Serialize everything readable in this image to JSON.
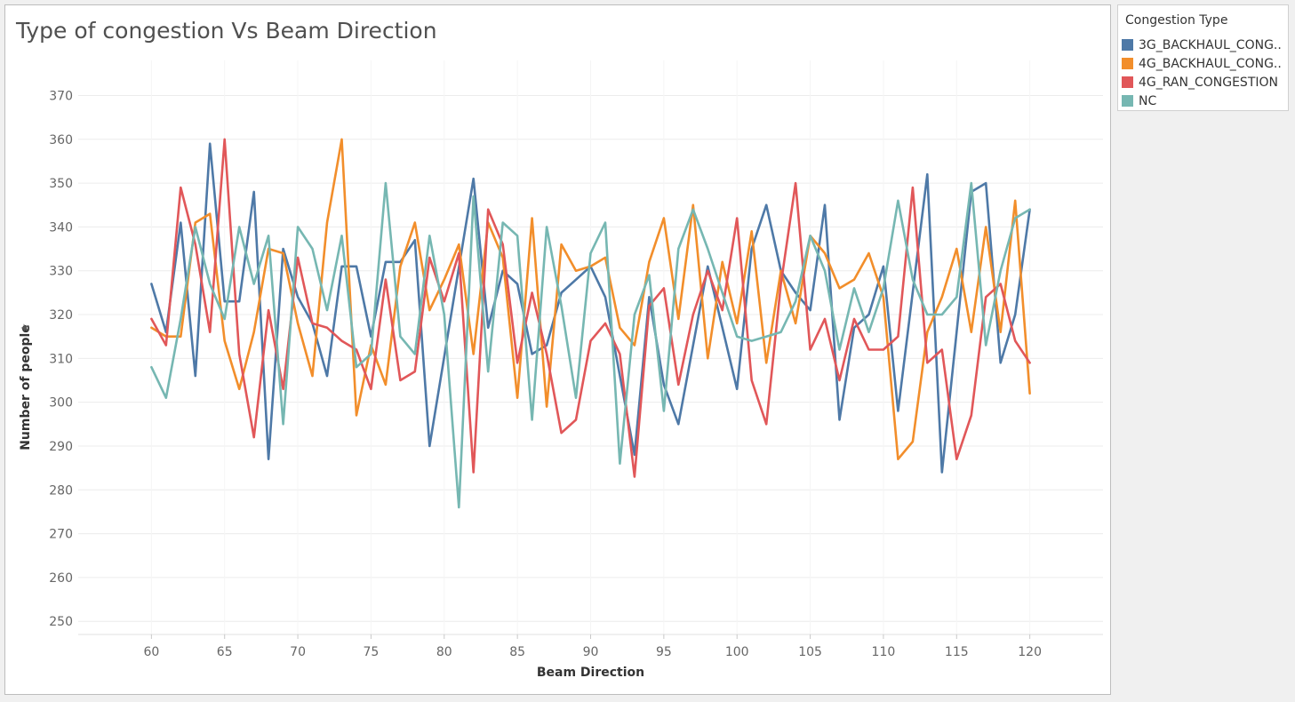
{
  "chart_data": {
    "type": "line",
    "title": "Type of congestion Vs Beam Direction",
    "xlabel": "Beam Direction",
    "ylabel": "Number of people",
    "xlim": [
      55,
      125
    ],
    "ylim": [
      247,
      378
    ],
    "x_ticks": [
      60,
      65,
      70,
      75,
      80,
      85,
      90,
      95,
      100,
      105,
      110,
      115,
      120
    ],
    "y_ticks": [
      250,
      260,
      270,
      280,
      290,
      300,
      310,
      320,
      330,
      340,
      350,
      360,
      370
    ],
    "grid": "horizontal",
    "legend_position": "top-right",
    "legend_title": "Congestion Type",
    "series": [
      {
        "name": "3G_BACKHAUL_CONG..",
        "color": "#4e79a7",
        "points": [
          [
            60,
            327
          ],
          [
            61,
            316
          ],
          [
            62,
            341
          ],
          [
            63,
            306
          ],
          [
            64,
            359
          ],
          [
            65,
            323
          ],
          [
            66,
            323
          ],
          [
            67,
            348
          ],
          [
            68,
            287
          ],
          [
            69,
            335
          ],
          [
            70,
            324
          ],
          [
            71,
            318
          ],
          [
            72,
            306
          ],
          [
            73,
            331
          ],
          [
            74,
            331
          ],
          [
            75,
            315
          ],
          [
            76,
            332
          ],
          [
            77,
            332
          ],
          [
            78,
            337
          ],
          [
            79,
            290
          ],
          [
            82,
            351
          ],
          [
            83,
            317
          ],
          [
            84,
            330
          ],
          [
            85,
            327
          ],
          [
            86,
            311
          ],
          [
            87,
            313
          ],
          [
            88,
            325
          ],
          [
            90,
            331
          ],
          [
            91,
            324
          ],
          [
            93,
            288
          ],
          [
            94,
            324
          ],
          [
            95,
            304
          ],
          [
            96,
            295
          ],
          [
            98,
            331
          ],
          [
            100,
            303
          ],
          [
            101,
            335
          ],
          [
            102,
            345
          ],
          [
            103,
            330
          ],
          [
            104,
            325
          ],
          [
            105,
            321
          ],
          [
            106,
            345
          ],
          [
            107,
            296
          ],
          [
            108,
            317
          ],
          [
            109,
            320
          ],
          [
            110,
            331
          ],
          [
            111,
            298
          ],
          [
            113,
            352
          ],
          [
            114,
            284
          ],
          [
            116,
            348
          ],
          [
            117,
            350
          ],
          [
            118,
            309
          ],
          [
            119,
            320
          ],
          [
            120,
            344
          ]
        ]
      },
      {
        "name": "4G_BACKHAUL_CONG..",
        "color": "#f28e2b",
        "points": [
          [
            60,
            317
          ],
          [
            61,
            315
          ],
          [
            62,
            315
          ],
          [
            63,
            341
          ],
          [
            64,
            343
          ],
          [
            65,
            314
          ],
          [
            66,
            303
          ],
          [
            67,
            316
          ],
          [
            68,
            335
          ],
          [
            69,
            334
          ],
          [
            70,
            318
          ],
          [
            71,
            306
          ],
          [
            72,
            341
          ],
          [
            73,
            360
          ],
          [
            74,
            297
          ],
          [
            75,
            313
          ],
          [
            76,
            304
          ],
          [
            77,
            331
          ],
          [
            78,
            341
          ],
          [
            79,
            321
          ],
          [
            80,
            328
          ],
          [
            81,
            336
          ],
          [
            82,
            311
          ],
          [
            83,
            341
          ],
          [
            84,
            333
          ],
          [
            85,
            301
          ],
          [
            86,
            342
          ],
          [
            87,
            299
          ],
          [
            88,
            336
          ],
          [
            89,
            330
          ],
          [
            90,
            331
          ],
          [
            91,
            333
          ],
          [
            92,
            317
          ],
          [
            93,
            313
          ],
          [
            94,
            332
          ],
          [
            95,
            342
          ],
          [
            96,
            319
          ],
          [
            97,
            345
          ],
          [
            98,
            310
          ],
          [
            99,
            332
          ],
          [
            100,
            318
          ],
          [
            101,
            339
          ],
          [
            102,
            309
          ],
          [
            103,
            330
          ],
          [
            104,
            318
          ],
          [
            105,
            338
          ],
          [
            106,
            334
          ],
          [
            107,
            326
          ],
          [
            108,
            328
          ],
          [
            109,
            334
          ],
          [
            110,
            324
          ],
          [
            111,
            287
          ],
          [
            112,
            291
          ],
          [
            113,
            316
          ],
          [
            114,
            324
          ],
          [
            115,
            335
          ],
          [
            116,
            316
          ],
          [
            117,
            340
          ],
          [
            118,
            316
          ],
          [
            119,
            346
          ],
          [
            120,
            302
          ]
        ]
      },
      {
        "name": "4G_RAN_CONGESTION",
        "color": "#e15759",
        "points": [
          [
            60,
            319
          ],
          [
            61,
            313
          ],
          [
            62,
            349
          ],
          [
            63,
            336
          ],
          [
            64,
            316
          ],
          [
            65,
            360
          ],
          [
            66,
            311
          ],
          [
            67,
            292
          ],
          [
            68,
            321
          ],
          [
            69,
            303
          ],
          [
            70,
            333
          ],
          [
            71,
            318
          ],
          [
            72,
            317
          ],
          [
            73,
            314
          ],
          [
            74,
            312
          ],
          [
            75,
            303
          ],
          [
            76,
            328
          ],
          [
            77,
            305
          ],
          [
            78,
            307
          ],
          [
            79,
            333
          ],
          [
            80,
            323
          ],
          [
            81,
            334
          ],
          [
            82,
            284
          ],
          [
            83,
            344
          ],
          [
            84,
            336
          ],
          [
            85,
            309
          ],
          [
            86,
            325
          ],
          [
            87,
            311
          ],
          [
            88,
            293
          ],
          [
            89,
            296
          ],
          [
            90,
            314
          ],
          [
            91,
            318
          ],
          [
            92,
            311
          ],
          [
            93,
            283
          ],
          [
            94,
            322
          ],
          [
            95,
            326
          ],
          [
            96,
            304
          ],
          [
            97,
            320
          ],
          [
            98,
            330
          ],
          [
            99,
            321
          ],
          [
            100,
            342
          ],
          [
            101,
            305
          ],
          [
            102,
            295
          ],
          [
            103,
            327
          ],
          [
            104,
            350
          ],
          [
            105,
            312
          ],
          [
            106,
            319
          ],
          [
            107,
            305
          ],
          [
            108,
            319
          ],
          [
            109,
            312
          ],
          [
            110,
            312
          ],
          [
            111,
            315
          ],
          [
            112,
            349
          ],
          [
            113,
            309
          ],
          [
            114,
            312
          ],
          [
            115,
            287
          ],
          [
            116,
            297
          ],
          [
            117,
            324
          ],
          [
            118,
            327
          ],
          [
            119,
            314
          ],
          [
            120,
            309
          ]
        ]
      },
      {
        "name": "NC",
        "color": "#76b7b2",
        "points": [
          [
            60,
            308
          ],
          [
            61,
            301
          ],
          [
            62,
            319
          ],
          [
            63,
            340
          ],
          [
            64,
            327
          ],
          [
            65,
            319
          ],
          [
            66,
            340
          ],
          [
            67,
            327
          ],
          [
            68,
            338
          ],
          [
            69,
            295
          ],
          [
            70,
            340
          ],
          [
            71,
            335
          ],
          [
            72,
            321
          ],
          [
            73,
            338
          ],
          [
            74,
            308
          ],
          [
            75,
            311
          ],
          [
            76,
            350
          ],
          [
            77,
            315
          ],
          [
            78,
            311
          ],
          [
            79,
            338
          ],
          [
            80,
            320
          ],
          [
            81,
            276
          ],
          [
            82,
            347
          ],
          [
            83,
            307
          ],
          [
            84,
            341
          ],
          [
            85,
            338
          ],
          [
            86,
            296
          ],
          [
            87,
            340
          ],
          [
            88,
            322
          ],
          [
            89,
            301
          ],
          [
            90,
            334
          ],
          [
            91,
            341
          ],
          [
            92,
            286
          ],
          [
            93,
            320
          ],
          [
            94,
            329
          ],
          [
            95,
            298
          ],
          [
            96,
            335
          ],
          [
            97,
            344
          ],
          [
            98,
            335
          ],
          [
            99,
            325
          ],
          [
            100,
            315
          ],
          [
            101,
            314
          ],
          [
            102,
            315
          ],
          [
            103,
            316
          ],
          [
            104,
            323
          ],
          [
            105,
            338
          ],
          [
            106,
            330
          ],
          [
            107,
            312
          ],
          [
            108,
            326
          ],
          [
            109,
            316
          ],
          [
            110,
            326
          ],
          [
            111,
            346
          ],
          [
            112,
            328
          ],
          [
            113,
            320
          ],
          [
            114,
            320
          ],
          [
            115,
            324
          ],
          [
            116,
            350
          ],
          [
            117,
            313
          ],
          [
            118,
            330
          ],
          [
            119,
            342
          ],
          [
            120,
            344
          ]
        ]
      }
    ]
  }
}
